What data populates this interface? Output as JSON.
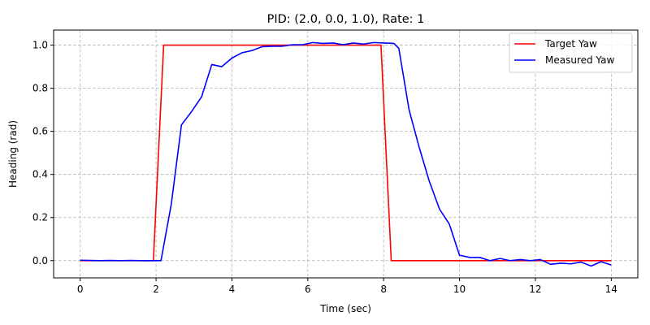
{
  "chart_data": {
    "type": "line",
    "title": "PID: (2.0, 0.0, 1.0), Rate: 1",
    "xlabel": "Time (sec)",
    "ylabel": "Heading (rad)",
    "xlim": [
      -0.7,
      14.7
    ],
    "ylim": [
      -0.08,
      1.07
    ],
    "xticks": [
      0,
      2,
      4,
      6,
      8,
      10,
      12,
      14
    ],
    "xtick_labels": [
      "0",
      "2",
      "4",
      "6",
      "8",
      "10",
      "12",
      "14"
    ],
    "yticks": [
      0.0,
      0.2,
      0.4,
      0.6,
      0.8,
      1.0
    ],
    "ytick_labels": [
      "0.0",
      "0.2",
      "0.4",
      "0.6",
      "0.8",
      "1.0"
    ],
    "grid": true,
    "legend_position": "top-right",
    "series": [
      {
        "name": "Target Yaw",
        "color": "#ff0000",
        "x": [
          0,
          1.93,
          2.2,
          7.93,
          8.2,
          14
        ],
        "y": [
          0,
          0,
          1,
          1,
          0,
          0
        ]
      },
      {
        "name": "Measured Yaw",
        "color": "#0000ff",
        "x": [
          0,
          0.27,
          0.53,
          0.8,
          1.07,
          1.33,
          1.6,
          1.87,
          2.13,
          2.4,
          2.67,
          2.93,
          3.2,
          3.47,
          3.73,
          4.0,
          4.27,
          4.53,
          4.8,
          5.07,
          5.33,
          5.6,
          5.87,
          6.13,
          6.4,
          6.67,
          6.93,
          7.2,
          7.47,
          7.73,
          8.0,
          8.27,
          8.4,
          8.67,
          8.93,
          9.2,
          9.47,
          9.73,
          10.0,
          10.27,
          10.53,
          10.8,
          11.07,
          11.33,
          11.6,
          11.87,
          12.13,
          12.4,
          12.67,
          12.93,
          13.2,
          13.47,
          13.73,
          14.0
        ],
        "y": [
          0.002,
          0.001,
          0.0,
          0.001,
          0.0,
          0.001,
          0.0,
          0.0,
          0.0,
          0.26,
          0.63,
          0.69,
          0.76,
          0.91,
          0.9,
          0.94,
          0.965,
          0.975,
          0.993,
          0.995,
          0.995,
          1.002,
          1.002,
          1.012,
          1.008,
          1.01,
          1.002,
          1.01,
          1.005,
          1.012,
          1.01,
          1.008,
          0.985,
          0.7,
          0.53,
          0.37,
          0.24,
          0.17,
          0.025,
          0.015,
          0.015,
          0.0,
          0.01,
          0.0,
          0.005,
          0.0,
          0.005,
          -0.017,
          -0.012,
          -0.015,
          -0.007,
          -0.025,
          -0.005,
          -0.02
        ]
      }
    ]
  }
}
